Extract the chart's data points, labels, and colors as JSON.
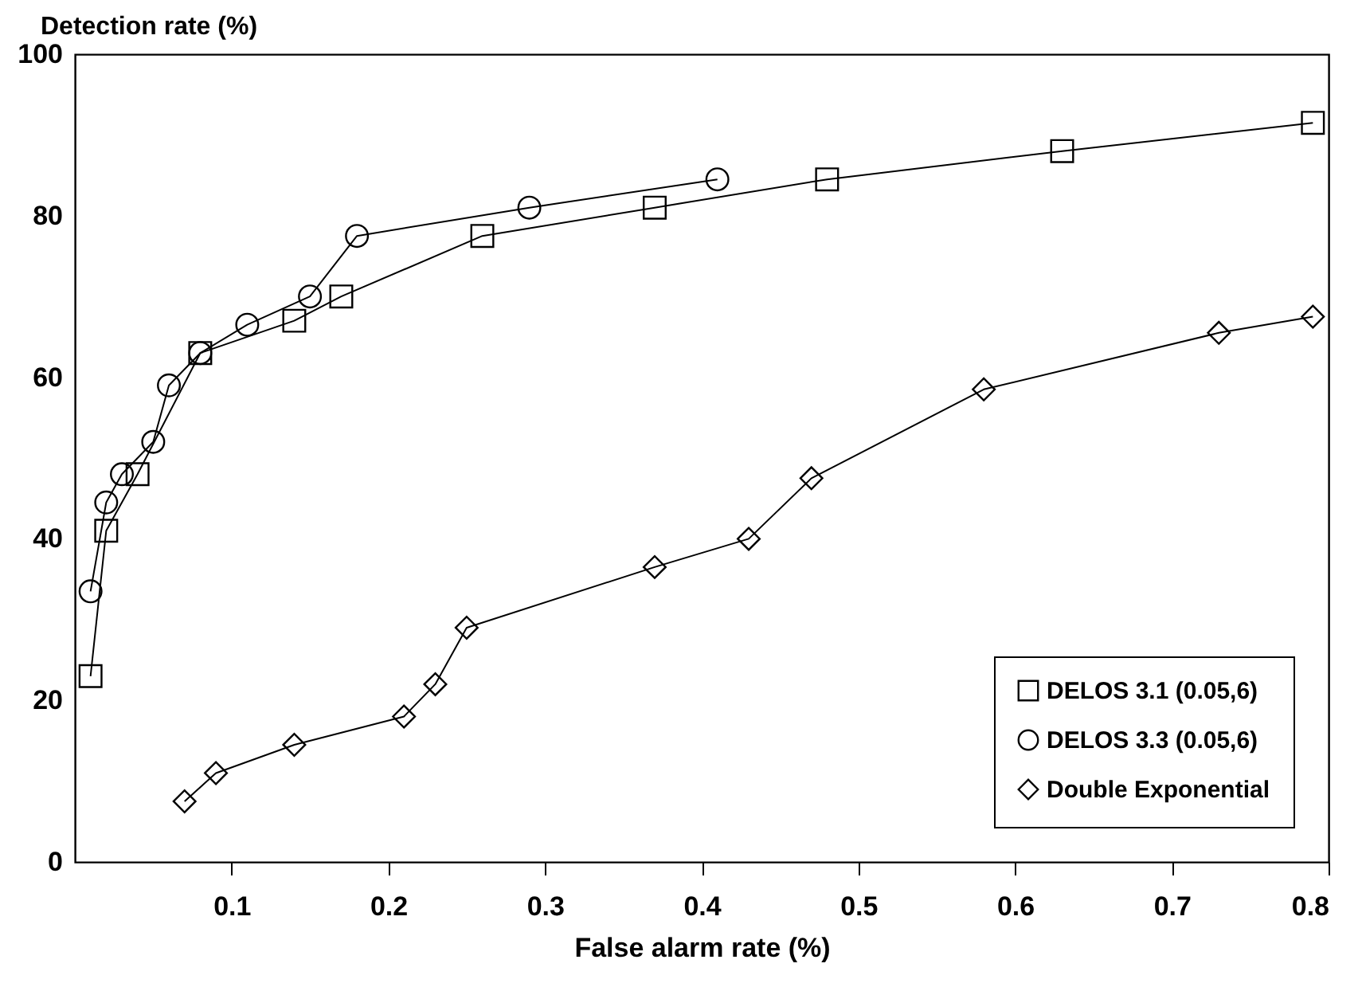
{
  "chart_data": {
    "type": "line",
    "xlabel": "False alarm rate (%)",
    "ylabel": "Detection rate (%)",
    "xlim": [
      0,
      0.8
    ],
    "ylim": [
      0,
      100
    ],
    "xticks": [
      0.1,
      0.2,
      0.3,
      0.4,
      0.5,
      0.6,
      0.7,
      0.8
    ],
    "yticks": [
      0,
      20,
      40,
      60,
      80,
      100
    ],
    "grid": false,
    "legend": "bottom right",
    "line_style": "solid",
    "series": [
      {
        "name": "DELOS 3.1 (0.05,6)",
        "color": "#000000",
        "marker": "square",
        "x": [
          0.01,
          0.02,
          0.04,
          0.08,
          0.14,
          0.17,
          0.26,
          0.37,
          0.48,
          0.63,
          0.79
        ],
        "values": [
          23,
          41,
          48,
          63,
          67,
          70,
          77.5,
          81,
          84.5,
          88,
          91.5
        ]
      },
      {
        "name": "DELOS 3.3 (0.05,6)",
        "color": "#000000",
        "marker": "circle",
        "x": [
          0.01,
          0.02,
          0.03,
          0.05,
          0.06,
          0.08,
          0.11,
          0.15,
          0.18,
          0.29,
          0.41
        ],
        "values": [
          33.5,
          44.5,
          48,
          52,
          59,
          63,
          66.5,
          70,
          77.5,
          81,
          84.5
        ]
      },
      {
        "name": "Double Exponential",
        "color": "#000000",
        "marker": "diamond",
        "x": [
          0.07,
          0.09,
          0.14,
          0.21,
          0.23,
          0.25,
          0.37,
          0.43,
          0.47,
          0.58,
          0.73,
          0.79
        ],
        "values": [
          7.5,
          11,
          14.5,
          18,
          22,
          29,
          36.5,
          40,
          47.5,
          58.5,
          65.5,
          67.5
        ]
      }
    ]
  }
}
